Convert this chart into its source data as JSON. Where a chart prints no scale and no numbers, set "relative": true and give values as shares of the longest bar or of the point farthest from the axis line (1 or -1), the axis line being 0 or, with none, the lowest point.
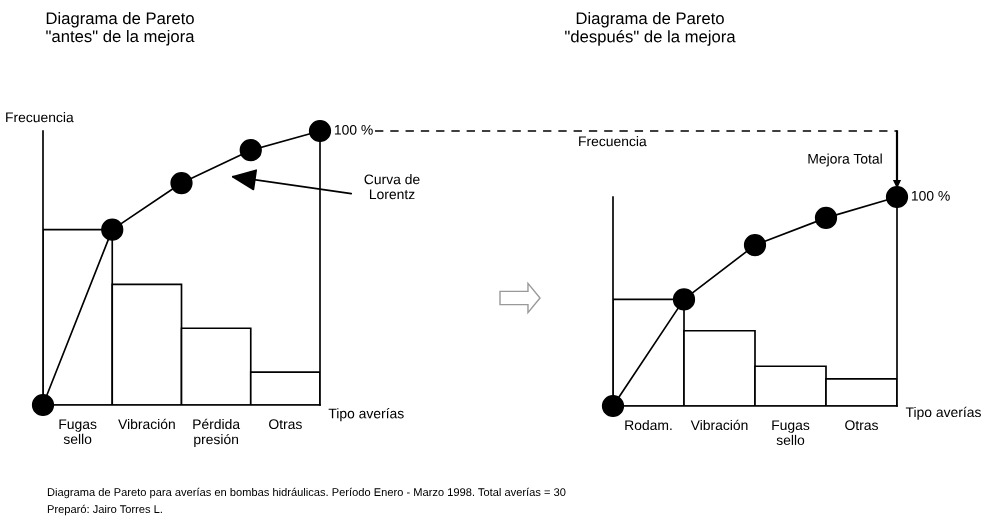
{
  "chart_data": [
    {
      "type": "bar",
      "title": "Diagrama de Pareto\n\"antes\" de la mejora",
      "xlabel": "Tipo averías",
      "ylabel": "Frecuencia",
      "categories": [
        null,
        "Fugas\nsello",
        null,
        "Vibración",
        null,
        "Pérdida\npresión",
        null,
        "Otras",
        null
      ],
      "relative": true,
      "tick_labels": "x",
      "marker": "circle",
      "series": [
        {
          "color": "#ffffff",
          "values": [
            null,
            0.64,
            null,
            0.44,
            null,
            0.28,
            null,
            0.12,
            null
          ]
        },
        {
          "type": "line",
          "color": "#000000",
          "values": [
            0,
            null,
            0.64,
            null,
            0.81,
            null,
            0.93,
            null,
            1
          ]
        }
      ],
      "annotations": [
        "100 %",
        "Curva de\nLorentz",
        "Diagrama de Pareto para averías en bombas hidráulicas. Período Enero - Marzo 1998. Total averías = 30",
        "Preparó: Jairo Torres L."
      ]
    },
    {
      "type": "bar",
      "title": "Diagrama de Pareto\n\"después\" de la mejora",
      "xlabel": "Tipo averías",
      "ylabel": "Frecuencia",
      "categories": [
        null,
        "Rodam.",
        null,
        "Vibración",
        null,
        "Fugas\nsello",
        null,
        "Otras",
        null
      ],
      "relative": true,
      "tick_labels": "x",
      "marker": "circle",
      "series": [
        {
          "color": "#ffffff",
          "values": [
            null,
            0.51,
            null,
            0.36,
            null,
            0.19,
            null,
            0.13,
            null
          ]
        },
        {
          "type": "line",
          "color": "#000000",
          "values": [
            0,
            null,
            0.51,
            null,
            0.77,
            null,
            0.9,
            null,
            1
          ]
        }
      ],
      "annotations": [
        "100 %",
        "Mejora Total"
      ]
    }
  ]
}
